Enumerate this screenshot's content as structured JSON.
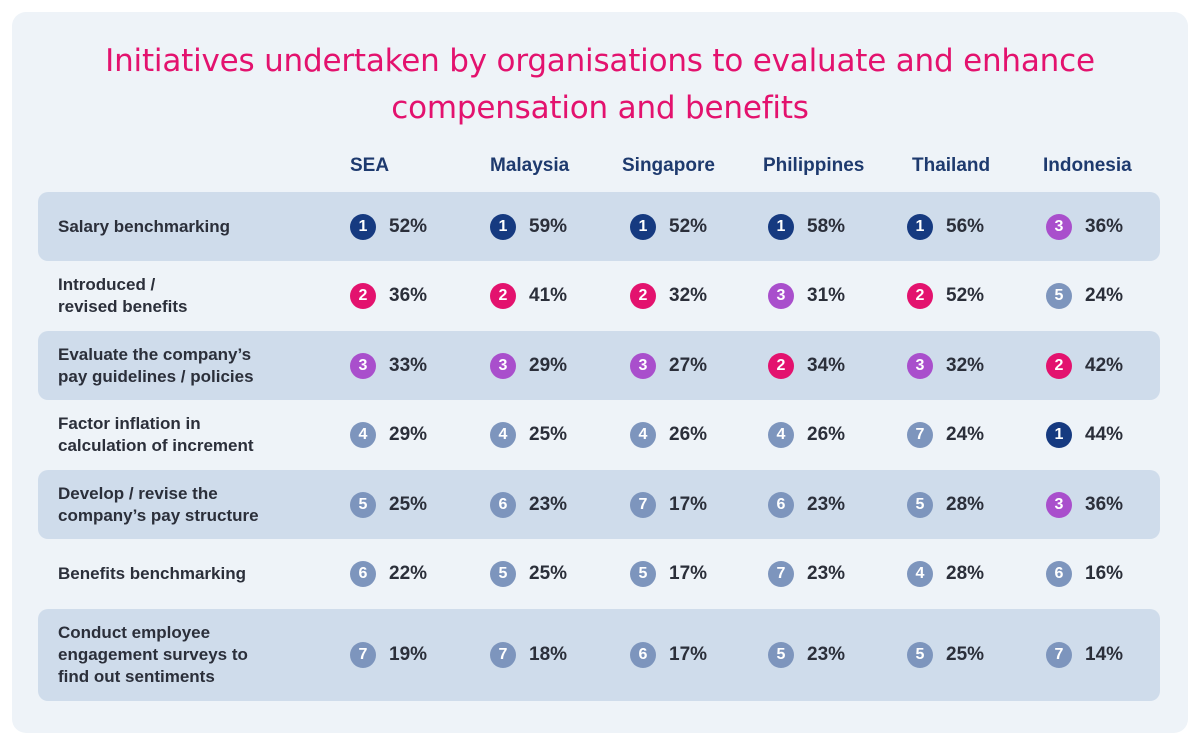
{
  "title": "Initiatives undertaken by organisations to evaluate and enhance compensation and benefits",
  "colors": {
    "title": "#e3126e",
    "header": "#1e3a6e",
    "band": "#cfdceb",
    "rank1": "#163a80",
    "rank2": "#e3126e",
    "rank3": "#a94fcc",
    "rank_other": "#7d95bd"
  },
  "columns": [
    "SEA",
    "Malaysia",
    "Singapore",
    "Philippines",
    "Thailand",
    "Indonesia"
  ],
  "rows": [
    {
      "label": "Salary benchmarking",
      "cells": [
        {
          "rank": "1",
          "pct": "52%"
        },
        {
          "rank": "1",
          "pct": "59%"
        },
        {
          "rank": "1",
          "pct": "52%"
        },
        {
          "rank": "1",
          "pct": "58%"
        },
        {
          "rank": "1",
          "pct": "56%"
        },
        {
          "rank": "3",
          "pct": "36%"
        }
      ]
    },
    {
      "label": "Introduced /\nrevised benefits",
      "cells": [
        {
          "rank": "2",
          "pct": "36%"
        },
        {
          "rank": "2",
          "pct": "41%"
        },
        {
          "rank": "2",
          "pct": "32%"
        },
        {
          "rank": "3",
          "pct": "31%"
        },
        {
          "rank": "2",
          "pct": "52%"
        },
        {
          "rank": "5",
          "pct": "24%"
        }
      ]
    },
    {
      "label": "Evaluate the company’s\npay guidelines / policies",
      "cells": [
        {
          "rank": "3",
          "pct": "33%"
        },
        {
          "rank": "3",
          "pct": "29%"
        },
        {
          "rank": "3",
          "pct": "27%"
        },
        {
          "rank": "2",
          "pct": "34%"
        },
        {
          "rank": "3",
          "pct": "32%"
        },
        {
          "rank": "2",
          "pct": "42%"
        }
      ]
    },
    {
      "label": "Factor inflation in\ncalculation of increment",
      "cells": [
        {
          "rank": "4",
          "pct": "29%"
        },
        {
          "rank": "4",
          "pct": "25%"
        },
        {
          "rank": "4",
          "pct": "26%"
        },
        {
          "rank": "4",
          "pct": "26%"
        },
        {
          "rank": "7",
          "pct": "24%"
        },
        {
          "rank": "1",
          "pct": "44%"
        }
      ]
    },
    {
      "label": "Develop / revise the\ncompany’s pay structure",
      "cells": [
        {
          "rank": "5",
          "pct": "25%"
        },
        {
          "rank": "6",
          "pct": "23%"
        },
        {
          "rank": "7",
          "pct": "17%"
        },
        {
          "rank": "6",
          "pct": "23%"
        },
        {
          "rank": "5",
          "pct": "28%"
        },
        {
          "rank": "3",
          "pct": "36%"
        }
      ]
    },
    {
      "label": "Benefits benchmarking",
      "cells": [
        {
          "rank": "6",
          "pct": "22%"
        },
        {
          "rank": "5",
          "pct": "25%"
        },
        {
          "rank": "5",
          "pct": "17%"
        },
        {
          "rank": "7",
          "pct": "23%"
        },
        {
          "rank": "4",
          "pct": "28%"
        },
        {
          "rank": "6",
          "pct": "16%"
        }
      ]
    },
    {
      "label": "Conduct employee\nengagement surveys to\nfind out sentiments",
      "cells": [
        {
          "rank": "7",
          "pct": "19%"
        },
        {
          "rank": "7",
          "pct": "18%"
        },
        {
          "rank": "6",
          "pct": "17%"
        },
        {
          "rank": "5",
          "pct": "23%"
        },
        {
          "rank": "5",
          "pct": "25%"
        },
        {
          "rank": "7",
          "pct": "14%"
        }
      ]
    }
  ],
  "chart_data": {
    "type": "table",
    "title": "Initiatives undertaken by organisations to evaluate and enhance compensation and benefits",
    "columns": [
      "SEA",
      "Malaysia",
      "Singapore",
      "Philippines",
      "Thailand",
      "Indonesia"
    ],
    "categories": [
      "Salary benchmarking",
      "Introduced / revised benefits",
      "Evaluate the company’s pay guidelines / policies",
      "Factor inflation in calculation of increment",
      "Develop / revise the company’s pay structure",
      "Benefits benchmarking",
      "Conduct employee engagement surveys to find out sentiments"
    ],
    "series": [
      {
        "name": "SEA",
        "values": [
          52,
          36,
          33,
          29,
          25,
          22,
          19
        ],
        "ranks": [
          1,
          2,
          3,
          4,
          5,
          6,
          7
        ]
      },
      {
        "name": "Malaysia",
        "values": [
          59,
          41,
          29,
          25,
          23,
          25,
          18
        ],
        "ranks": [
          1,
          2,
          3,
          4,
          6,
          5,
          7
        ]
      },
      {
        "name": "Singapore",
        "values": [
          52,
          32,
          27,
          26,
          17,
          17,
          17
        ],
        "ranks": [
          1,
          2,
          3,
          4,
          7,
          5,
          6
        ]
      },
      {
        "name": "Philippines",
        "values": [
          58,
          31,
          34,
          26,
          23,
          23,
          23
        ],
        "ranks": [
          1,
          3,
          2,
          4,
          6,
          7,
          5
        ]
      },
      {
        "name": "Thailand",
        "values": [
          56,
          52,
          32,
          24,
          28,
          28,
          25
        ],
        "ranks": [
          1,
          2,
          3,
          7,
          5,
          4,
          5
        ]
      },
      {
        "name": "Indonesia",
        "values": [
          36,
          24,
          42,
          44,
          36,
          16,
          14
        ],
        "ranks": [
          3,
          5,
          2,
          1,
          3,
          6,
          7
        ]
      }
    ],
    "unit": "%"
  }
}
